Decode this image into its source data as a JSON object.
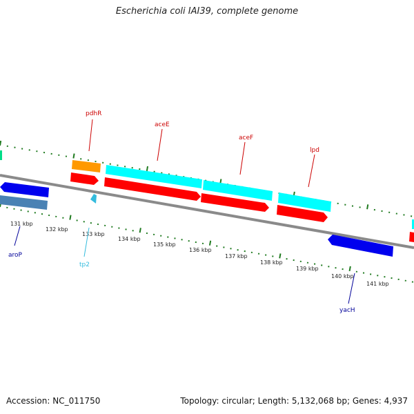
{
  "title": "Escherichia coli IAI39, complete genome",
  "footer": {
    "accession": "Accession: NC_011750",
    "summary": "Topology: circular; Length: 5,132,068 bp; Genes: 4,937"
  },
  "colors": {
    "backbone": "#8a8a8a",
    "tick": "#1f7a1f",
    "cds": "#ff0000",
    "gene_cyan": "#00ffff",
    "gene_orange": "#ff9900",
    "gene_blue": "#0000ee",
    "gene_steel": "#4a82b4",
    "label_red": "#cc0000",
    "label_blue": "#000099",
    "label_cyan": "#33bbdd"
  },
  "scale": {
    "unit": "kbp",
    "labels": [
      "131 kbp",
      "132 kbp",
      "133 kbp",
      "134 kbp",
      "135 kbp",
      "136 kbp",
      "137 kbp",
      "138 kbp",
      "139 kbp",
      "140 kbp",
      "141 kbp"
    ]
  },
  "gene_labels": [
    {
      "name": "pdhR",
      "color": "label_red"
    },
    {
      "name": "aceE",
      "color": "label_red"
    },
    {
      "name": "aceF",
      "color": "label_red"
    },
    {
      "name": "lpd",
      "color": "label_red"
    },
    {
      "name": "aroP",
      "color": "label_blue"
    },
    {
      "name": "tp2",
      "color": "label_cyan"
    },
    {
      "name": "yacH",
      "color": "label_blue"
    }
  ]
}
